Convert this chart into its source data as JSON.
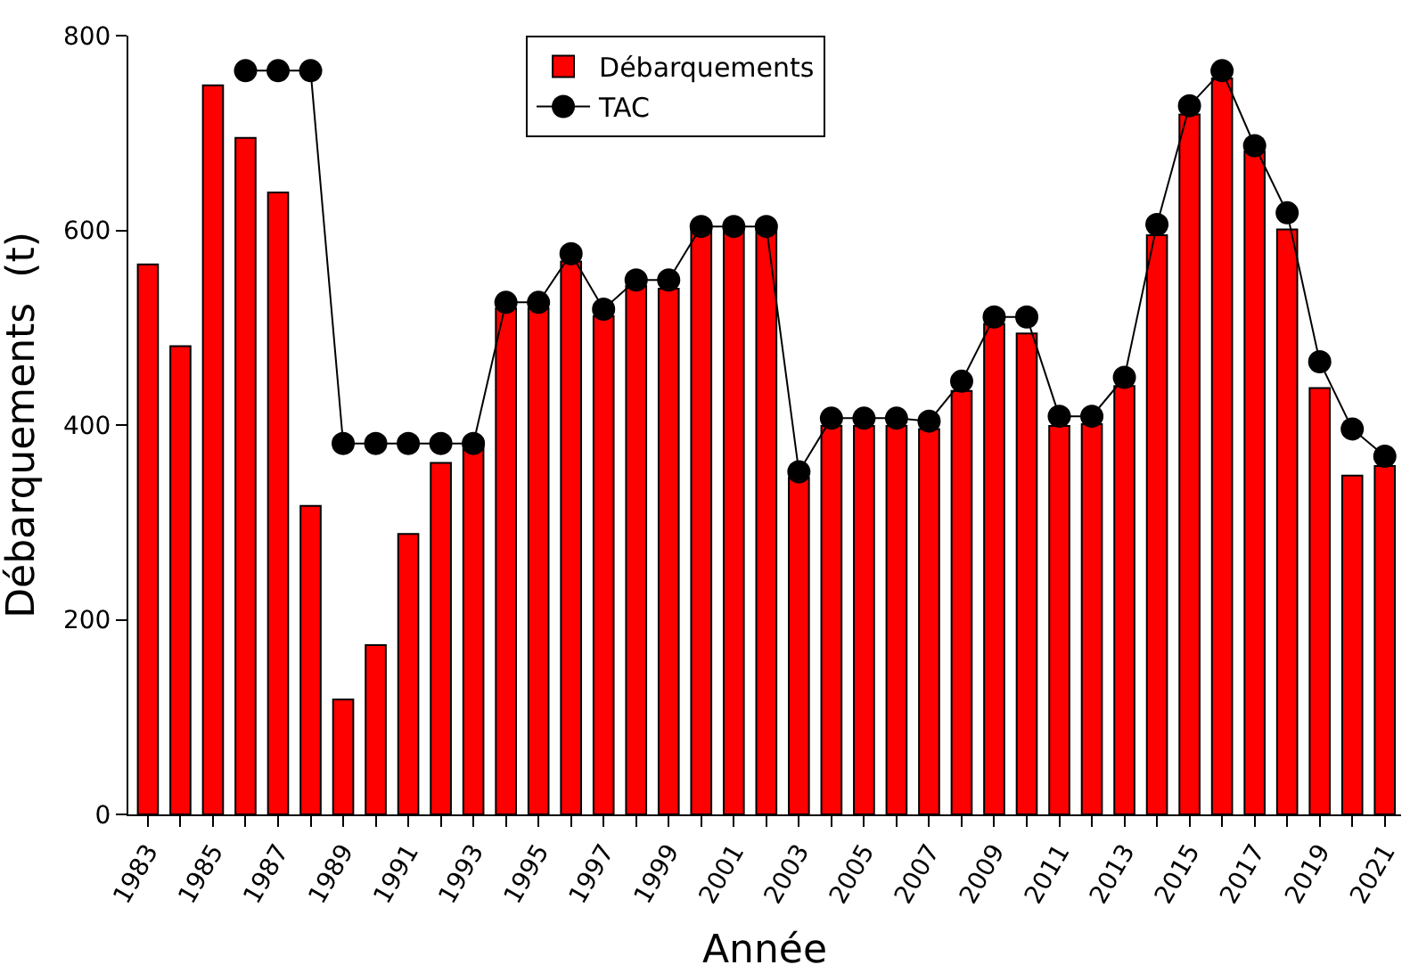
{
  "chart_data": {
    "type": "bar",
    "xlabel": "Année",
    "ylabel": "Débarquements  (t)",
    "x": [
      1983,
      1984,
      1985,
      1986,
      1987,
      1988,
      1989,
      1990,
      1991,
      1992,
      1993,
      1994,
      1995,
      1996,
      1997,
      1998,
      1999,
      2000,
      2001,
      2002,
      2003,
      2004,
      2005,
      2006,
      2007,
      2008,
      2009,
      2010,
      2011,
      2012,
      2013,
      2014,
      2015,
      2016,
      2017,
      2018,
      2019,
      2020,
      2021
    ],
    "series": [
      {
        "name": "Débarquements",
        "color": "#ff0000",
        "values": [
          565,
          481,
          749,
          695,
          639,
          317,
          118,
          174,
          288,
          361,
          383,
          520,
          520,
          568,
          512,
          543,
          540,
          600,
          600,
          600,
          346,
          399,
          399,
          399,
          396,
          435,
          504,
          494,
          399,
          401,
          440,
          595,
          719,
          756,
          681,
          601,
          438,
          348,
          358
        ]
      },
      {
        "name": "TAC",
        "type": "line",
        "color": "#000000",
        "marker": "circle",
        "values": [
          null,
          null,
          null,
          764,
          764,
          764,
          381,
          381,
          381,
          381,
          381,
          526,
          526,
          576,
          519,
          549,
          549,
          604,
          604,
          604,
          352,
          407,
          407,
          407,
          404,
          445,
          511,
          511,
          409,
          409,
          449,
          606,
          728,
          764,
          687,
          618,
          465,
          396,
          368
        ]
      }
    ],
    "xlim": [
      1982.4,
      2021.5
    ],
    "xticks": [
      1983,
      {
        "value": 1984,
        "label": null
      },
      1985,
      {
        "value": 1986,
        "label": null
      },
      1987,
      {
        "value": 1988,
        "label": null
      },
      1989,
      {
        "value": 1990,
        "label": null
      },
      1991,
      {
        "value": 1992,
        "label": null
      },
      1993,
      {
        "value": 1994,
        "label": null
      },
      1995,
      {
        "value": 1996,
        "label": null
      },
      1997,
      {
        "value": 1998,
        "label": null
      },
      1999,
      {
        "value": 2000,
        "label": null
      },
      2001,
      {
        "value": 2002,
        "label": null
      },
      2003,
      {
        "value": 2004,
        "label": null
      },
      2005,
      {
        "value": 2006,
        "label": null
      },
      2007,
      {
        "value": 2008,
        "label": null
      },
      2009,
      {
        "value": 2010,
        "label": null
      },
      2011,
      {
        "value": 2012,
        "label": null
      },
      2013,
      {
        "value": 2014,
        "label": null
      },
      2015,
      {
        "value": 2016,
        "label": null
      },
      2017,
      {
        "value": 2018,
        "label": null
      },
      2019,
      {
        "value": 2020,
        "label": null
      },
      2021
    ],
    "ylim": [
      0,
      800
    ],
    "yticks": [
      0,
      200,
      400,
      600,
      800
    ],
    "legend": "top"
  }
}
